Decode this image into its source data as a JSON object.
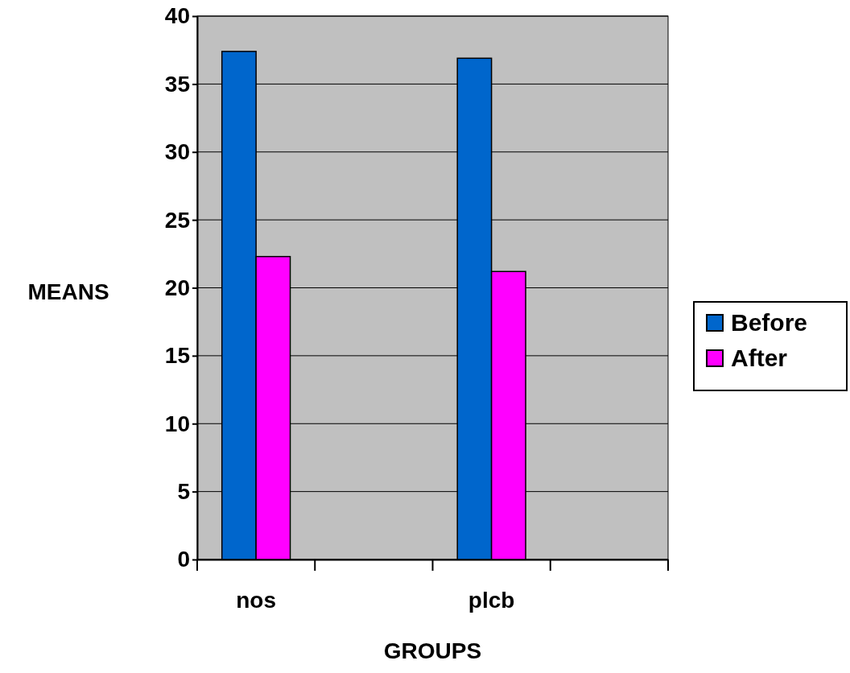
{
  "chart_data": {
    "type": "bar",
    "xlabel": "GROUPS",
    "ylabel": "MEANS",
    "categories": [
      "nos",
      null,
      "plcb",
      null
    ],
    "series": [
      {
        "name": "Before",
        "color": "#0066cc",
        "values": [
          37.4,
          null,
          36.9,
          null
        ]
      },
      {
        "name": "After",
        "color": "#ff00ff",
        "values": [
          22.3,
          null,
          21.2,
          null
        ]
      }
    ],
    "ylim": [
      0,
      40
    ],
    "yticks": [
      0,
      5,
      10,
      15,
      20,
      25,
      30,
      35,
      40
    ],
    "grid": "y",
    "legend": "right"
  }
}
